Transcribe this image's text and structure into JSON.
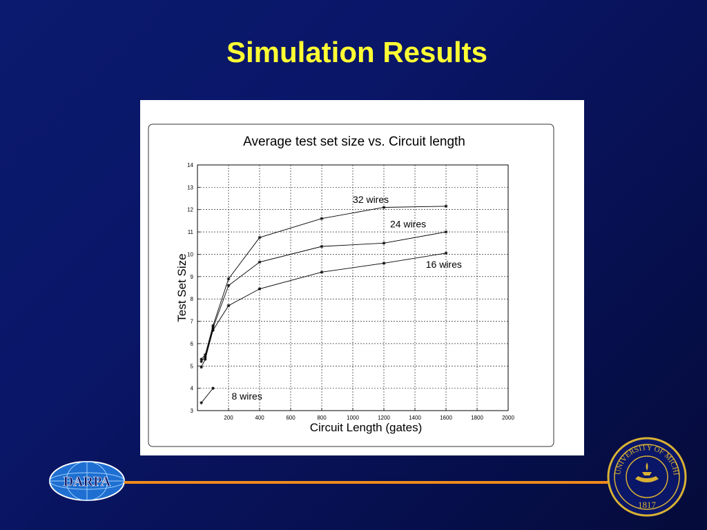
{
  "slide": {
    "title": "Simulation Results"
  },
  "logos": {
    "darpa_text": "DARPA",
    "umich_seal_text": "THE UNIVERSITY OF MICHIGAN",
    "umich_seal_year": "1817"
  },
  "colors": {
    "background": "#0a1668",
    "title": "#ffff33",
    "rule": "#f08a1a"
  },
  "chart_data": {
    "type": "line",
    "title": "Average test set size vs. Circuit length",
    "xlabel": "Circuit Length (gates)",
    "ylabel": "Test Set Size",
    "xlim": [
      0,
      2000
    ],
    "ylim": [
      3,
      14
    ],
    "xticks": [
      200,
      400,
      600,
      800,
      1000,
      1200,
      1400,
      1600,
      1800,
      2000
    ],
    "yticks": [
      3,
      4,
      5,
      6,
      7,
      8,
      9,
      10,
      11,
      12,
      13,
      14
    ],
    "grid": true,
    "marker": "*",
    "series": [
      {
        "name": "32 wires",
        "x": [
          25,
          50,
          100,
          200,
          400,
          800,
          1200,
          1600
        ],
        "y": [
          5.3,
          5.5,
          6.8,
          8.9,
          10.75,
          11.6,
          12.1,
          12.15
        ]
      },
      {
        "name": "24 wires",
        "x": [
          25,
          50,
          100,
          200,
          400,
          800,
          1200,
          1600
        ],
        "y": [
          5.2,
          5.4,
          6.7,
          8.6,
          9.65,
          10.35,
          10.5,
          11.0
        ]
      },
      {
        "name": "16 wires",
        "x": [
          25,
          50,
          100,
          200,
          400,
          800,
          1200,
          1600
        ],
        "y": [
          4.95,
          5.3,
          6.6,
          7.7,
          8.45,
          9.2,
          9.6,
          10.05
        ]
      },
      {
        "name": "8 wires",
        "x": [
          25,
          100
        ],
        "y": [
          3.35,
          4.0
        ]
      }
    ],
    "annotations": [
      {
        "text": "32 wires",
        "x": 1000,
        "y": 12.3
      },
      {
        "text": "24 wires",
        "x": 1240,
        "y": 11.2
      },
      {
        "text": "16 wires",
        "x": 1470,
        "y": 9.4
      },
      {
        "text": "8 wires",
        "x": 220,
        "y": 3.5
      }
    ]
  }
}
